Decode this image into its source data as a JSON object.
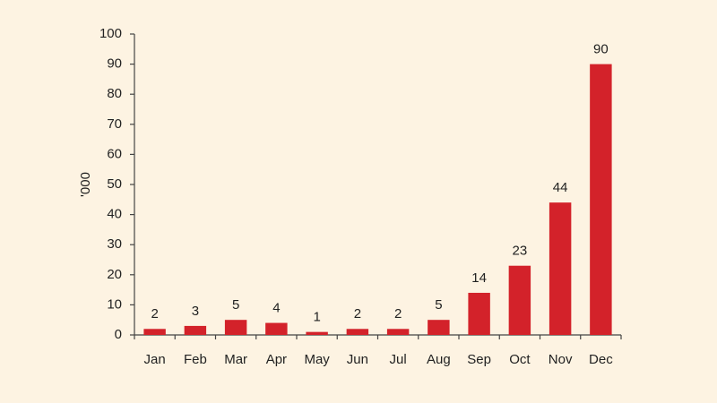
{
  "chart_data": {
    "type": "bar",
    "y_label": "'000",
    "categories": [
      "Jan",
      "Feb",
      "Mar",
      "Apr",
      "May",
      "Jun",
      "Jul",
      "Aug",
      "Sep",
      "Oct",
      "Nov",
      "Dec"
    ],
    "values": [
      2,
      3,
      5,
      4,
      1,
      2,
      2,
      5,
      14,
      23,
      44,
      90
    ],
    "color": "#d3222a",
    "ylim": [
      0,
      100
    ],
    "yticks": [
      0,
      10,
      20,
      30,
      40,
      50,
      60,
      70,
      80,
      90,
      100
    ],
    "grid": false
  }
}
